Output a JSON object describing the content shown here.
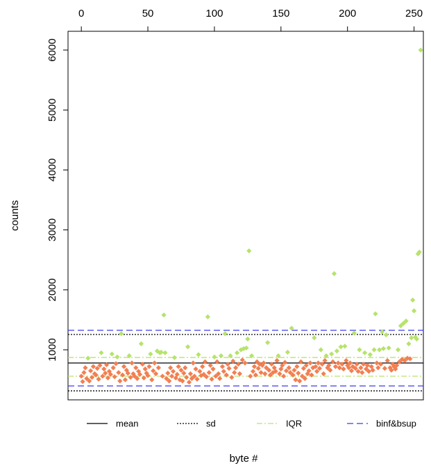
{
  "chart_data": {
    "type": "scatter",
    "xlabel": "byte #",
    "ylabel": "counts",
    "xlim": [
      -10,
      257
    ],
    "ylim": [
      165,
      6313
    ],
    "xticks": [
      0,
      50,
      100,
      150,
      200,
      250
    ],
    "yticks": [
      1000,
      2000,
      3000,
      4000,
      5000,
      6000
    ],
    "series": [
      {
        "color": "#f27f52",
        "x": [
          0,
          1,
          2,
          3,
          4,
          6,
          7,
          8,
          9,
          10,
          11,
          12,
          13,
          14,
          16,
          17,
          18,
          19,
          20,
          21,
          22,
          24,
          25,
          26,
          28,
          29,
          31,
          32,
          33,
          34,
          35,
          37,
          38,
          39,
          40,
          41,
          42,
          43,
          44,
          46,
          47,
          48,
          49,
          50,
          51,
          53,
          54,
          55,
          56,
          58,
          61,
          64,
          65,
          66,
          67,
          68,
          69,
          71,
          72,
          73,
          74,
          75,
          76,
          77,
          78,
          79,
          81,
          82,
          83,
          84,
          85,
          86,
          87,
          89,
          90,
          91,
          92,
          93,
          94,
          96,
          97,
          98,
          99,
          101,
          102,
          103,
          104,
          106,
          107,
          109,
          110,
          111,
          113,
          114,
          115,
          116,
          118,
          119,
          121,
          123,
          127,
          129,
          130,
          131,
          132,
          133,
          134,
          135,
          136,
          137,
          138,
          139,
          141,
          142,
          143,
          144,
          145,
          146,
          147,
          149,
          150,
          151,
          152,
          153,
          154,
          156,
          157,
          159,
          160,
          161,
          162,
          163,
          164,
          165,
          166,
          167,
          168,
          169,
          170,
          171,
          172,
          173,
          174,
          176,
          177,
          178,
          179,
          181,
          182,
          183,
          185,
          186,
          187,
          189,
          191,
          193,
          194,
          196,
          197,
          199,
          200,
          201,
          202,
          203,
          204,
          206,
          207,
          208,
          210,
          211,
          212,
          214,
          215,
          216,
          218,
          219,
          222,
          223,
          225,
          228,
          230,
          232,
          233,
          234,
          235,
          236,
          237,
          239,
          241,
          243,
          245,
          247
        ],
        "values": [
          560,
          470,
          620,
          700,
          520,
          480,
          650,
          540,
          720,
          600,
          580,
          690,
          510,
          740,
          560,
          680,
          610,
          750,
          530,
          640,
          590,
          700,
          550,
          770,
          620,
          480,
          580,
          720,
          500,
          660,
          610,
          540,
          780,
          600,
          560,
          700,
          520,
          640,
          590,
          760,
          530,
          680,
          610,
          570,
          720,
          500,
          650,
          780,
          600,
          700,
          560,
          520,
          610,
          480,
          700,
          560,
          640,
          530,
          590,
          720,
          500,
          660,
          480,
          610,
          700,
          540,
          460,
          600,
          520,
          780,
          560,
          680,
          510,
          640,
          570,
          720,
          590,
          800,
          550,
          620,
          740,
          510,
          680,
          560,
          800,
          600,
          520,
          720,
          640,
          580,
          760,
          690,
          540,
          810,
          620,
          700,
          760,
          600,
          830,
          780,
          560,
          640,
          720,
          580,
          800,
          690,
          760,
          620,
          740,
          780,
          600,
          700,
          660,
          580,
          760,
          620,
          700,
          640,
          820,
          600,
          680,
          740,
          560,
          790,
          650,
          700,
          620,
          580,
          660,
          500,
          720,
          610,
          480,
          800,
          560,
          690,
          520,
          740,
          600,
          650,
          780,
          580,
          700,
          720,
          640,
          780,
          690,
          760,
          600,
          820,
          700,
          740,
          660,
          800,
          720,
          780,
          700,
          760,
          680,
          820,
          740,
          700,
          780,
          650,
          720,
          690,
          760,
          640,
          700,
          620,
          760,
          680,
          740,
          640,
          720,
          660,
          780,
          700,
          760,
          690,
          820,
          700,
          660,
          760,
          720,
          680,
          740,
          800,
          840,
          820,
          860,
          850
        ]
      },
      {
        "color": "#b6e36c",
        "x": [
          5,
          15,
          23,
          27,
          30,
          36,
          45,
          52,
          57,
          59,
          60,
          62,
          63,
          70,
          80,
          88,
          95,
          100,
          105,
          108,
          112,
          117,
          120,
          122,
          124,
          125,
          126,
          128,
          140,
          148,
          155,
          158,
          175,
          180,
          184,
          188,
          190,
          192,
          195,
          198,
          205,
          209,
          213,
          217,
          220,
          221,
          224,
          226,
          227,
          229,
          231,
          238,
          240,
          242,
          244,
          246,
          248,
          249,
          250,
          251,
          252,
          253,
          254,
          255
        ],
        "values": [
          860,
          950,
          930,
          880,
          1270,
          900,
          1100,
          930,
          980,
          950,
          960,
          1580,
          950,
          870,
          1050,
          920,
          1550,
          880,
          900,
          1270,
          900,
          950,
          1000,
          1020,
          1030,
          1180,
          2650,
          900,
          1120,
          900,
          960,
          1360,
          1200,
          1000,
          900,
          930,
          2270,
          980,
          1050,
          1060,
          1280,
          1000,
          950,
          920,
          1000,
          1600,
          1000,
          1300,
          1020,
          1250,
          1030,
          1000,
          1400,
          1440,
          1480,
          1100,
          1200,
          1830,
          1650,
          1210,
          1180,
          2600,
          2630,
          6000
        ]
      }
    ],
    "lines": [
      {
        "name": "mean",
        "color": "#000000",
        "style": "solid",
        "values": [
          780
        ]
      },
      {
        "name": "sd",
        "color": "#000000",
        "style": "dotted",
        "values": [
          315,
          1255
        ]
      },
      {
        "name": "IQR",
        "color": "#b6e36c",
        "style": "dashdot",
        "values": [
          559,
          872
        ]
      },
      {
        "name": "binf&bsup",
        "color": "#3b3bf0",
        "style": "dashed",
        "values": [
          397,
          1325
        ]
      }
    ]
  }
}
